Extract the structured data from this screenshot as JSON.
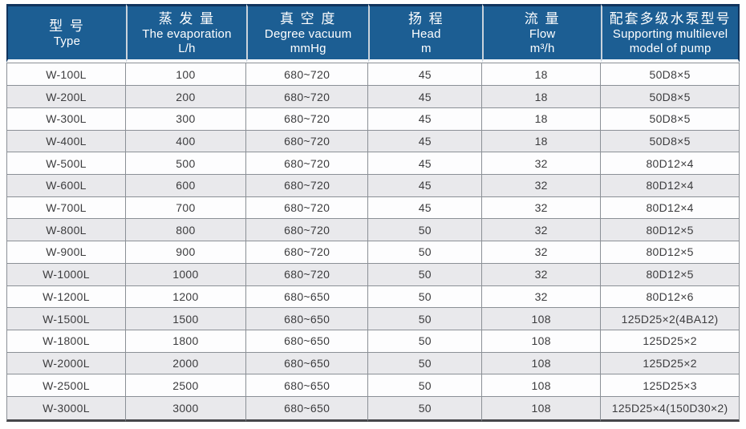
{
  "colors": {
    "header_bg": "#1c5e93",
    "header_text": "#ffffff",
    "dark_edge": "#10335c",
    "row_bg": "#fdfdfe",
    "row_alt_bg": "#e9e9ec",
    "grid_border": "#8b9096",
    "body_text": "#3c3c3e",
    "header_sep": "#c9d3dc",
    "bottom_edge": "#45464a"
  },
  "table": {
    "column_keys": [
      "type",
      "evaporation",
      "vacuum",
      "head",
      "flow",
      "pump-model"
    ],
    "columns": [
      {
        "zh": "型  号",
        "en": "Type",
        "unit": ""
      },
      {
        "zh": "蒸 发 量",
        "en": "The evaporation",
        "unit": "L/h"
      },
      {
        "zh": "真 空 度",
        "en": "Degree vacuum",
        "unit": "mmHg"
      },
      {
        "zh": "扬  程",
        "en": "Head",
        "unit": "m"
      },
      {
        "zh": "流  量",
        "en": "Flow",
        "unit": "m³/h"
      },
      {
        "zh": "配套多级水泵型号",
        "en": "Supporting multilevel",
        "unit": "model of pump"
      }
    ],
    "rows": [
      [
        "W-100L",
        "100",
        "680~720",
        "45",
        "18",
        "50D8×5"
      ],
      [
        "W-200L",
        "200",
        "680~720",
        "45",
        "18",
        "50D8×5"
      ],
      [
        "W-300L",
        "300",
        "680~720",
        "45",
        "18",
        "50D8×5"
      ],
      [
        "W-400L",
        "400",
        "680~720",
        "45",
        "18",
        "50D8×5"
      ],
      [
        "W-500L",
        "500",
        "680~720",
        "45",
        "32",
        "80D12×4"
      ],
      [
        "W-600L",
        "600",
        "680~720",
        "45",
        "32",
        "80D12×4"
      ],
      [
        "W-700L",
        "700",
        "680~720",
        "45",
        "32",
        "80D12×4"
      ],
      [
        "W-800L",
        "800",
        "680~720",
        "50",
        "32",
        "80D12×5"
      ],
      [
        "W-900L",
        "900",
        "680~720",
        "50",
        "32",
        "80D12×5"
      ],
      [
        "W-1000L",
        "1000",
        "680~720",
        "50",
        "32",
        "80D12×5"
      ],
      [
        "W-1200L",
        "1200",
        "680~650",
        "50",
        "32",
        "80D12×6"
      ],
      [
        "W-1500L",
        "1500",
        "680~650",
        "50",
        "108",
        "125D25×2(4BA12)"
      ],
      [
        "W-1800L",
        "1800",
        "680~650",
        "50",
        "108",
        "125D25×2"
      ],
      [
        "W-2000L",
        "2000",
        "680~650",
        "50",
        "108",
        "125D25×2"
      ],
      [
        "W-2500L",
        "2500",
        "680~650",
        "50",
        "108",
        "125D25×3"
      ],
      [
        "W-3000L",
        "3000",
        "680~650",
        "50",
        "108",
        "125D25×4(150D30×2)"
      ]
    ]
  }
}
